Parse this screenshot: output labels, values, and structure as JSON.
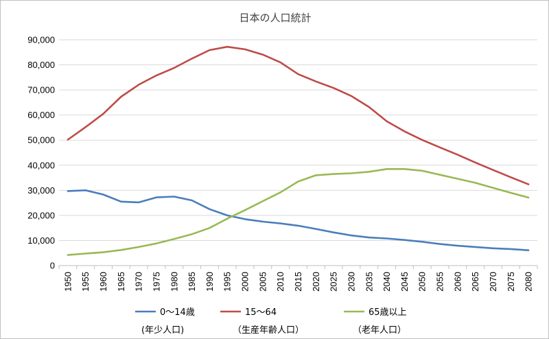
{
  "chart_data": {
    "type": "line",
    "title": "日本の人口統計",
    "x": [
      "1950",
      "1955",
      "1960",
      "1965",
      "1970",
      "1975",
      "1980",
      "1985",
      "1990",
      "1995",
      "2000",
      "2005",
      "2010",
      "2015",
      "2020",
      "2025",
      "2030",
      "2035",
      "2040",
      "2045",
      "2050",
      "2055",
      "2060",
      "2065",
      "2070",
      "2075",
      "2080"
    ],
    "ylim": [
      0,
      90000
    ],
    "yticks": [
      "0",
      "10,000",
      "20,000",
      "30,000",
      "40,000",
      "50,000",
      "60,000",
      "70,000",
      "80,000",
      "90,000"
    ],
    "grid": true,
    "legend": "bottom",
    "series": [
      {
        "name": "0～14歳",
        "sublabel": "(年少人口)",
        "color": "#4a7ebb",
        "values": [
          29700,
          30000,
          28300,
          25500,
          25200,
          27200,
          27500,
          26000,
          22500,
          20000,
          18500,
          17500,
          16800,
          15900,
          14600,
          13200,
          12000,
          11200,
          10800,
          10200,
          9500,
          8600,
          7900,
          7400,
          6900,
          6600,
          6100
        ]
      },
      {
        "name": "15～64",
        "sublabel": "（生産年齢人口）",
        "color": "#be4b48",
        "values": [
          50200,
          55200,
          60500,
          67300,
          72100,
          75800,
          78800,
          82500,
          85900,
          87200,
          86200,
          84100,
          81000,
          76300,
          73400,
          70800,
          67600,
          63200,
          57500,
          53500,
          50100,
          47100,
          44200,
          41100,
          38100,
          35200,
          32400
        ]
      },
      {
        "name": "65歳以上",
        "sublabel": "（老年人口）",
        "color": "#98b954",
        "values": [
          4200,
          4800,
          5300,
          6200,
          7400,
          8800,
          10600,
          12500,
          15000,
          18700,
          22100,
          25700,
          29200,
          33500,
          36000,
          36500,
          36800,
          37400,
          38500,
          38500,
          37800,
          36200,
          34600,
          33000,
          31000,
          29000,
          27100
        ]
      }
    ]
  }
}
